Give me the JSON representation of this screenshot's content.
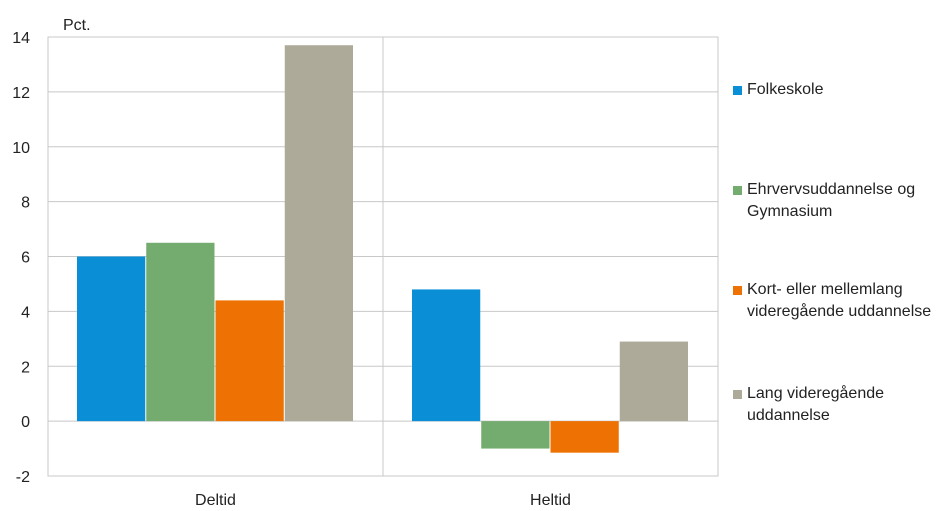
{
  "chart_data": {
    "type": "bar",
    "ylabel": "Pct.",
    "ylim": [
      -2,
      14
    ],
    "yticks": [
      14,
      12,
      10,
      8,
      6,
      4,
      2,
      0,
      -2
    ],
    "categories": [
      "Deltid",
      "Heltid"
    ],
    "grid": true,
    "legend": "right",
    "series": [
      {
        "name": "Folkeskole",
        "color": "#0a8ed6",
        "values": [
          6.0,
          4.8
        ]
      },
      {
        "name": "Ehrvervsuddannelse og Gymnasium",
        "color": "#74ab6f",
        "values": [
          6.5,
          -1.0
        ]
      },
      {
        "name": "Kort- eller mellemlang videregående uddannelse",
        "color": "#ee7203",
        "values": [
          4.4,
          -1.15
        ]
      },
      {
        "name": "Lang videregående uddannelse",
        "color": "#aeaa99",
        "values": [
          13.7,
          2.9
        ]
      }
    ]
  }
}
